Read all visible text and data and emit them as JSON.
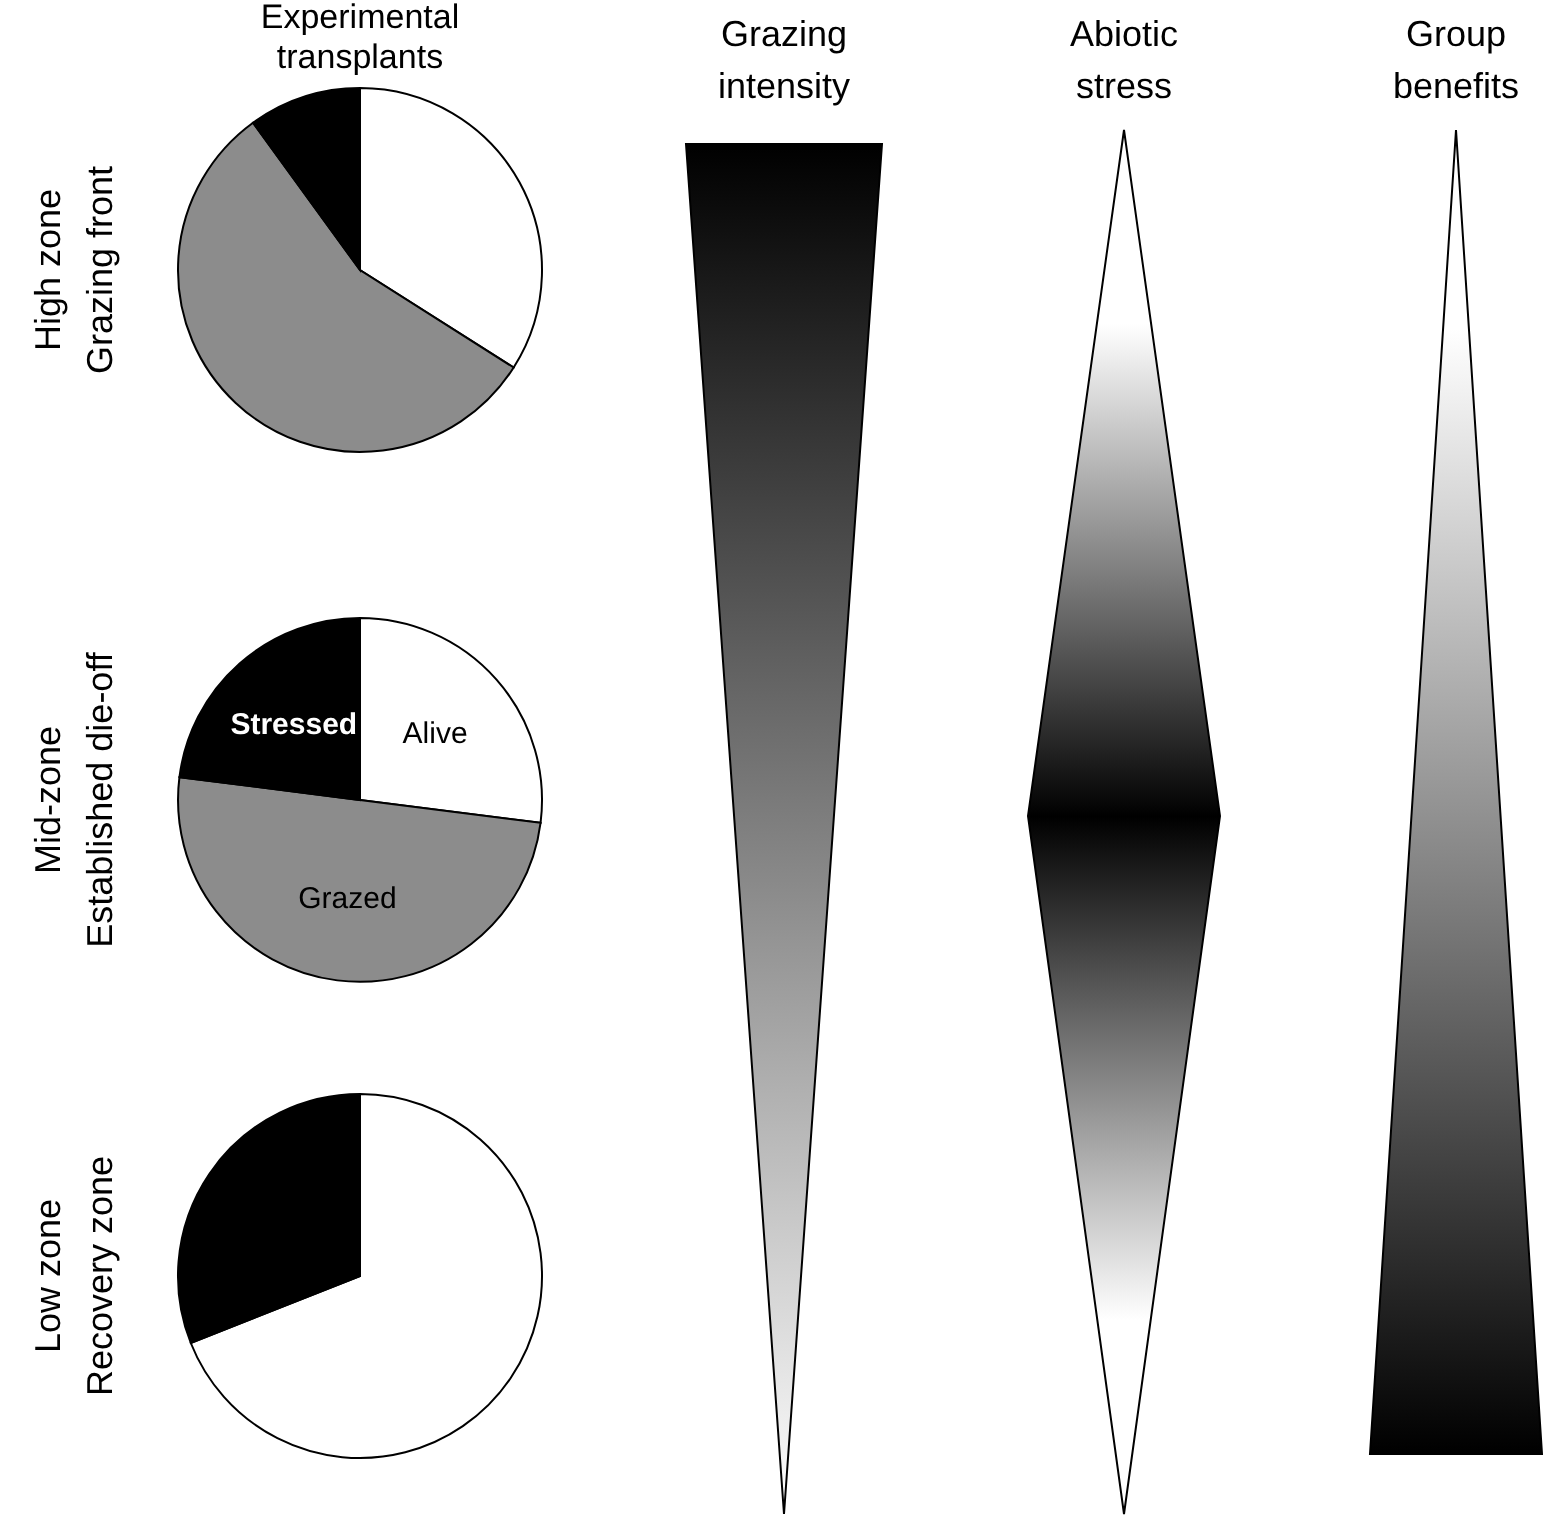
{
  "chart_data": [
    {
      "type": "pie",
      "title": "Experimental\ntransplants",
      "ylabel": "High zone\nGrazing front",
      "categories": [
        null,
        null,
        null
      ],
      "values": [
        34,
        56,
        10
      ],
      "colors": [
        "#ffffff",
        "#8c8c8c",
        "#000000"
      ]
    },
    {
      "type": "pie",
      "ylabel": "Mid-zone\nEstablished die-off",
      "categories": [
        "Alive",
        "Grazed",
        "Stressed"
      ],
      "values": [
        27,
        50,
        23
      ],
      "colors": [
        "#ffffff",
        "#8c8c8c",
        "#000000"
      ]
    },
    {
      "type": "pie",
      "ylabel": "Low zone\nRecovery zone",
      "categories": [
        null,
        null
      ],
      "values": [
        69,
        31
      ],
      "colors": [
        "#ffffff",
        "#000000"
      ]
    },
    {
      "type": "other",
      "title": "Grazing\nintensity"
    },
    {
      "type": "other",
      "title": "Abiotic\nstress"
    },
    {
      "type": "other",
      "title": "Group\nbenefits"
    }
  ]
}
